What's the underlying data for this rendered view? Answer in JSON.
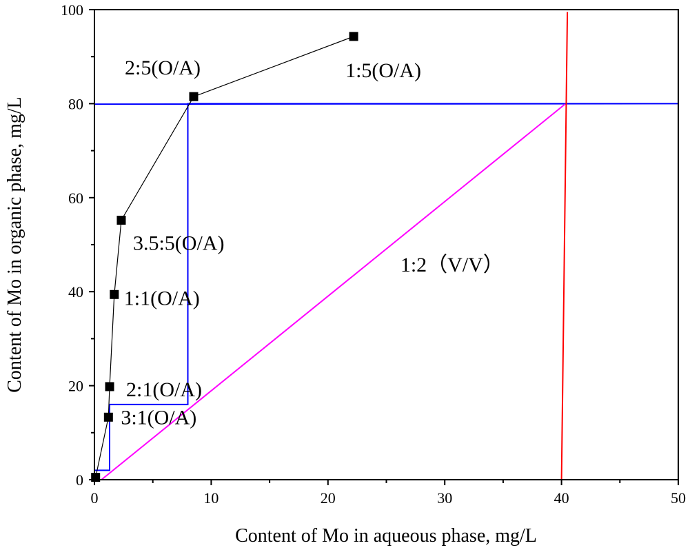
{
  "chart_data": {
    "type": "scatter",
    "xlabel": "Content of Mo in aqueous phase, mg/L",
    "ylabel": "Content of Mo in organic phase, mg/L",
    "xlim": [
      0,
      50
    ],
    "ylim": [
      0,
      100
    ],
    "x_ticks": [
      "0",
      "10",
      "20",
      "30",
      "40",
      "50"
    ],
    "y_ticks": [
      "0",
      "20",
      "40",
      "60",
      "80",
      "100"
    ],
    "grid": false,
    "legend": "none",
    "series": [
      {
        "color": "#000000",
        "style": "square-markers-with-line",
        "points": [
          {
            "x": 0.1,
            "y": 0.5,
            "label": ""
          },
          {
            "x": 1.2,
            "y": 13.3,
            "label": "3:1(O/A)"
          },
          {
            "x": 1.3,
            "y": 19.8,
            "label": "2:1(O/A)"
          },
          {
            "x": 1.7,
            "y": 39.4,
            "label": "1:1(O/A)"
          },
          {
            "x": 2.3,
            "y": 55.2,
            "label": "3.5:5(O/A)"
          },
          {
            "x": 8.5,
            "y": 81.5,
            "label": "2:5(O/A)"
          },
          {
            "x": 22.2,
            "y": 94.3,
            "label": "1:5(O/A)"
          }
        ]
      }
    ],
    "operating_line": {
      "label": "1:2（V/V）",
      "color": "#ff00ff",
      "points": [
        [
          0.6,
          0
        ],
        [
          40.3,
          79.9
        ]
      ]
    },
    "stage_steps": {
      "color": "#0000ff",
      "points": [
        [
          0,
          79.9
        ],
        [
          50,
          80.0
        ],
        [
          8.0,
          80.0
        ],
        [
          8.0,
          16.0
        ],
        [
          1.3,
          16.0
        ],
        [
          1.3,
          2.0
        ],
        [
          0,
          2.0
        ]
      ]
    },
    "feed_line": {
      "color": "#ff0000",
      "points": [
        [
          40.0,
          0
        ],
        [
          40.5,
          99.5
        ]
      ]
    }
  }
}
